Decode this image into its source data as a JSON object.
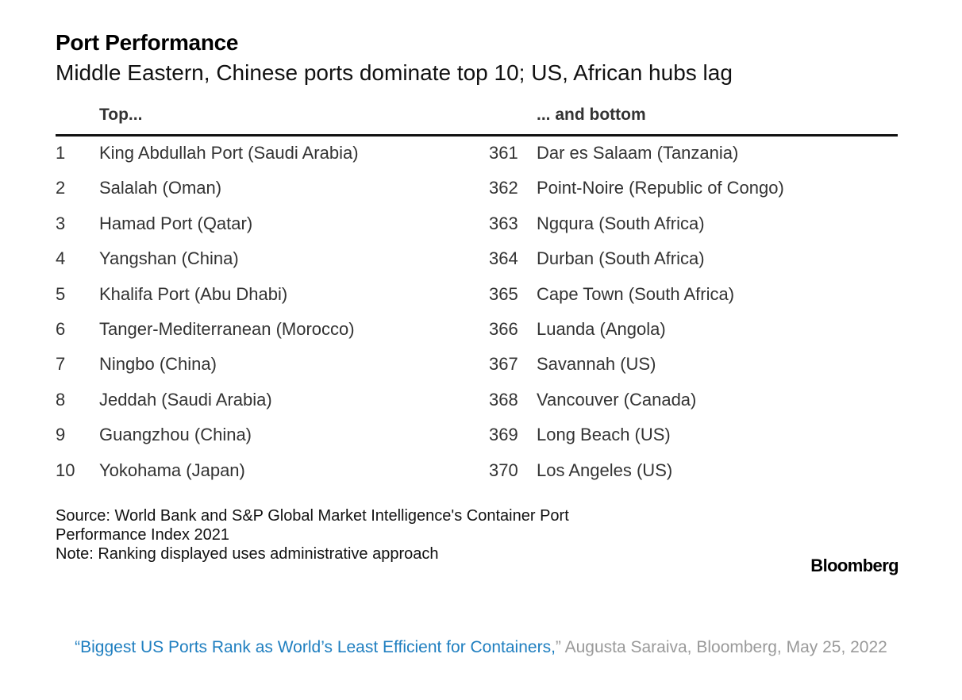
{
  "header": {
    "title": "Port Performance",
    "subtitle": "Middle Eastern, Chinese ports dominate top 10; US, African hubs lag"
  },
  "table": {
    "top_header": "Top...",
    "bottom_header": "... and bottom",
    "rows": [
      {
        "top_rank": "1",
        "top_name": "King Abdullah Port (Saudi Arabia)",
        "bottom_rank": "361",
        "bottom_name": "Dar es Salaam (Tanzania)"
      },
      {
        "top_rank": "2",
        "top_name": "Salalah (Oman)",
        "bottom_rank": "362",
        "bottom_name": "Point-Noire (Republic of Congo)"
      },
      {
        "top_rank": "3",
        "top_name": "Hamad Port (Qatar)",
        "bottom_rank": "363",
        "bottom_name": "Ngqura (South Africa)"
      },
      {
        "top_rank": "4",
        "top_name": "Yangshan (China)",
        "bottom_rank": "364",
        "bottom_name": "Durban (South Africa)"
      },
      {
        "top_rank": "5",
        "top_name": "Khalifa Port (Abu Dhabi)",
        "bottom_rank": "365",
        "bottom_name": "Cape Town (South Africa)"
      },
      {
        "top_rank": "6",
        "top_name": "Tanger-Mediterranean (Morocco)",
        "bottom_rank": "366",
        "bottom_name": "Luanda (Angola)"
      },
      {
        "top_rank": "7",
        "top_name": "Ningbo (China)",
        "bottom_rank": "367",
        "bottom_name": "Savannah (US)"
      },
      {
        "top_rank": "8",
        "top_name": "Jeddah (Saudi Arabia)",
        "bottom_rank": "368",
        "bottom_name": "Vancouver (Canada)"
      },
      {
        "top_rank": "9",
        "top_name": "Guangzhou (China)",
        "bottom_rank": "369",
        "bottom_name": "Long Beach (US)"
      },
      {
        "top_rank": "10",
        "top_name": "Yokohama (Japan)",
        "bottom_rank": "370",
        "bottom_name": "Los Angeles (US)"
      }
    ]
  },
  "footer": {
    "source_line1": "Source: World Bank and S&P Global Market Intelligence's Container Port",
    "source_line2": "Performance Index 2021",
    "note": "Note: Ranking displayed uses administrative approach",
    "logo": "Bloomberg"
  },
  "caption": {
    "link_text": "“Biggest US Ports Rank as World’s Least Efficient for Containers,",
    "rest_text": "” Augusta Saraiva, Bloomberg, May 25, 2022"
  }
}
